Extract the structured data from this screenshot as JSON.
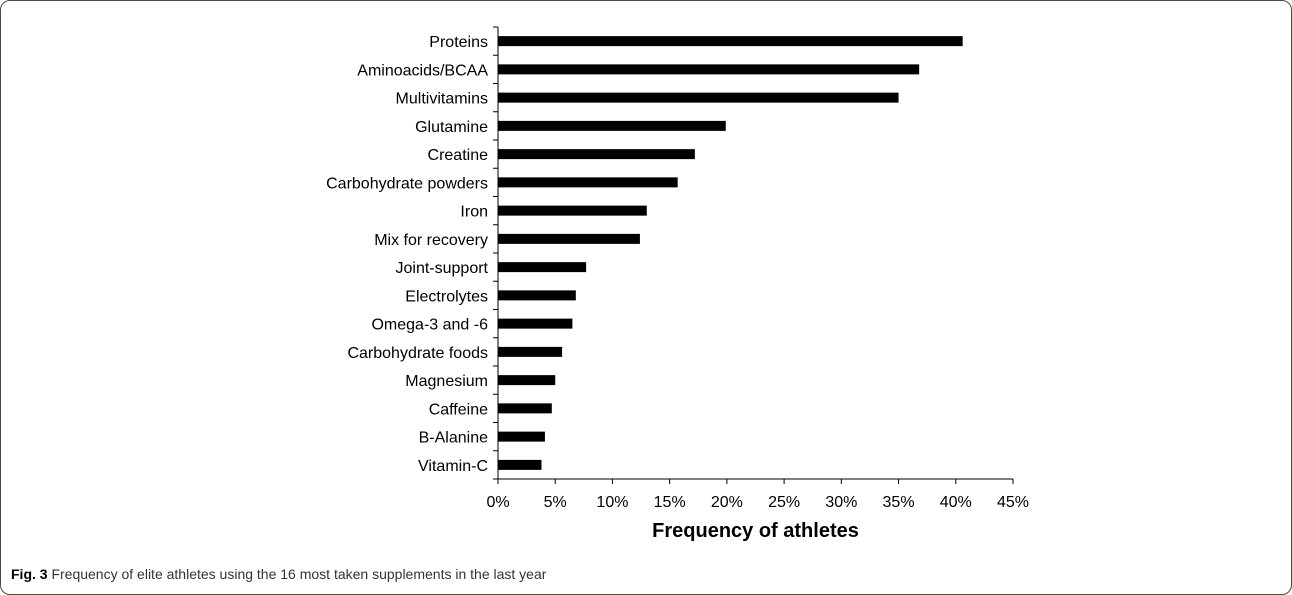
{
  "chart_data": {
    "type": "bar",
    "orientation": "horizontal",
    "categories": [
      "Proteins",
      "Aminoacids/BCAA",
      "Multivitamins",
      "Glutamine",
      "Creatine",
      "Carbohydrate powders",
      "Iron",
      "Mix for recovery",
      "Joint-support",
      "Electrolytes",
      "Omega-3 and -6",
      "Carbohydrate foods",
      "Magnesium",
      "Caffeine",
      "B-Alanine",
      "Vitamin-C"
    ],
    "values": [
      40.6,
      36.8,
      35.0,
      19.9,
      17.2,
      15.7,
      13.0,
      12.4,
      7.7,
      6.8,
      6.5,
      5.6,
      5.0,
      4.7,
      4.1,
      3.8
    ],
    "value_unit": "%",
    "xlabel": "Frequency of athletes",
    "ylabel": "",
    "xlim": [
      0,
      45
    ],
    "xticks": [
      "0%",
      "5%",
      "10%",
      "15%",
      "20%",
      "25%",
      "30%",
      "35%",
      "40%",
      "45%"
    ],
    "grid": false,
    "legend": "none",
    "bar_color": "#000000"
  },
  "caption": {
    "label": "Fig. 3",
    "text": " Frequency of elite athletes using the 16 most taken supplements in the last year"
  }
}
